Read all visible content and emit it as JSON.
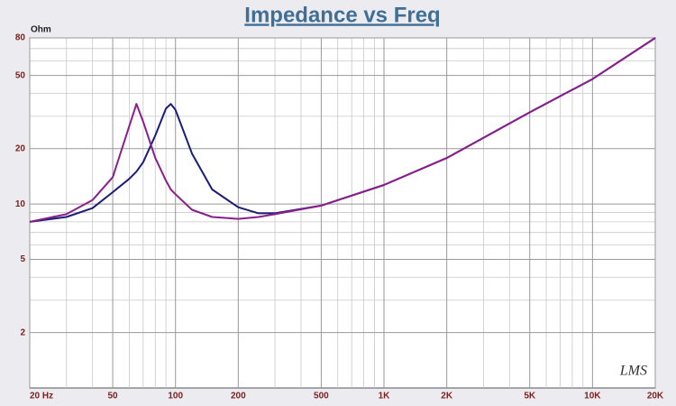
{
  "chart_data": {
    "type": "line",
    "title": "Impedance vs Freq",
    "y_label": "Ohm",
    "watermark": "LMS",
    "xlog": true,
    "ylog": true,
    "grid": true,
    "x": [
      20,
      30,
      40,
      50,
      60,
      65,
      70,
      80,
      90,
      95,
      100,
      120,
      150,
      200,
      250,
      300,
      500,
      1000,
      2000,
      5000,
      10000,
      20000
    ],
    "series": [
      {
        "color": "#1c1c78",
        "values": [
          8,
          8.5,
          9.5,
          11.6,
          13.7,
          15,
          16.9,
          23.6,
          33,
          35,
          32.5,
          18.8,
          12,
          9.6,
          8.9,
          8.9,
          9.8,
          12.7,
          17.8,
          31.5,
          47.8,
          80
        ]
      },
      {
        "color": "#8a1f8c",
        "values": [
          8,
          8.8,
          10.5,
          14,
          26.5,
          35,
          28,
          17.8,
          13.4,
          12,
          11.3,
          9.3,
          8.5,
          8.3,
          8.5,
          8.8,
          9.8,
          12.7,
          17.8,
          31.5,
          47.8,
          80
        ]
      }
    ],
    "xlim": [
      20,
      20000
    ],
    "ylim": [
      1,
      80
    ],
    "xticks": [
      {
        "value": 20,
        "label": "20 Hz"
      },
      50,
      100,
      200,
      500,
      {
        "value": 1000,
        "label": "1K"
      },
      {
        "value": 2000,
        "label": "2K"
      },
      {
        "value": 5000,
        "label": "5K"
      },
      {
        "value": 10000,
        "label": "10K"
      },
      {
        "value": 20000,
        "label": "20K"
      }
    ],
    "yticks": [
      2,
      5,
      10,
      20,
      50,
      80
    ],
    "xminor": [
      30,
      40,
      60,
      70,
      80,
      90,
      300,
      400,
      600,
      700,
      800,
      900,
      3000,
      4000,
      6000,
      7000,
      8000,
      9000
    ],
    "yminor": [
      3,
      4,
      6,
      7,
      8,
      9,
      30,
      40,
      60,
      70
    ]
  }
}
